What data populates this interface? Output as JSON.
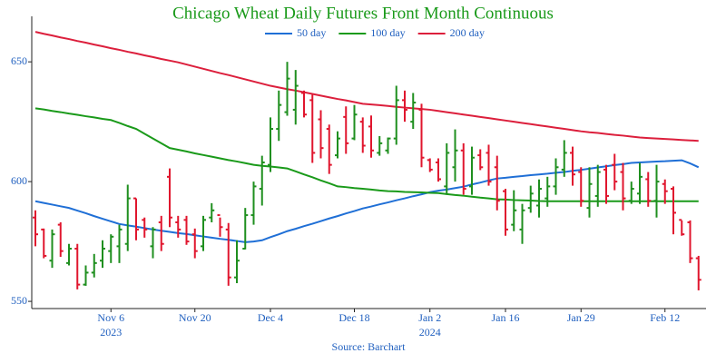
{
  "chart_data": {
    "type": "ohlc",
    "title": "Chicago Wheat Daily Futures Front Month Continuous",
    "source": "Source: Barchart",
    "categories": [
      "2023-10-24",
      "2023-10-25",
      "2023-10-26",
      "2023-10-27",
      "2023-10-30",
      "2023-10-31",
      "2023-11-01",
      "2023-11-02",
      "2023-11-03",
      "2023-11-06",
      "2023-11-07",
      "2023-11-08",
      "2023-11-09",
      "2023-11-10",
      "2023-11-13",
      "2023-11-14",
      "2023-11-15",
      "2023-11-16",
      "2023-11-17",
      "2023-11-20",
      "2023-11-21",
      "2023-11-22",
      "2023-11-24",
      "2023-11-27",
      "2023-11-28",
      "2023-11-29",
      "2023-11-30",
      "2023-12-01",
      "2023-12-04",
      "2023-12-05",
      "2023-12-06",
      "2023-12-07",
      "2023-12-08",
      "2023-12-11",
      "2023-12-12",
      "2023-12-13",
      "2023-12-14",
      "2023-12-15",
      "2023-12-18",
      "2023-12-19",
      "2023-12-20",
      "2023-12-21",
      "2023-12-22",
      "2023-12-26",
      "2023-12-27",
      "2023-12-28",
      "2023-12-29",
      "2024-01-02",
      "2024-01-03",
      "2024-01-04",
      "2024-01-05",
      "2024-01-08",
      "2024-01-09",
      "2024-01-10",
      "2024-01-11",
      "2024-01-12",
      "2024-01-16",
      "2024-01-17",
      "2024-01-18",
      "2024-01-19",
      "2024-01-22",
      "2024-01-23",
      "2024-01-24",
      "2024-01-25",
      "2024-01-26",
      "2024-01-29",
      "2024-01-30",
      "2024-01-31",
      "2024-02-01",
      "2024-02-02",
      "2024-02-05",
      "2024-02-06",
      "2024-02-07",
      "2024-02-08",
      "2024-02-09",
      "2024-02-12",
      "2024-02-13",
      "2024-02-14",
      "2024-02-15",
      "2024-02-16"
    ],
    "open": [
      585,
      580,
      567,
      582,
      566,
      572,
      557,
      562,
      567,
      571,
      573,
      574,
      593,
      584,
      573,
      583,
      602,
      583,
      584,
      578,
      573,
      585,
      586,
      580,
      560,
      572,
      586,
      597,
      607,
      622,
      629,
      630,
      637,
      634,
      626,
      622,
      611,
      627,
      618,
      625,
      623,
      612,
      613,
      618,
      634,
      625,
      630,
      609,
      608,
      598,
      606,
      613,
      598,
      611,
      612,
      606,
      596,
      582,
      580,
      589,
      590,
      593,
      598,
      605,
      612,
      604,
      589,
      594,
      605,
      607,
      604,
      592,
      595,
      601,
      592,
      599,
      597,
      584,
      583,
      568
    ],
    "high": [
      588,
      580.4,
      580,
      583,
      574,
      574,
      565,
      569.8,
      575.5,
      578,
      582,
      598.7,
      593,
      585,
      581,
      585.7,
      605.5,
      585.7,
      585.7,
      580.4,
      585.7,
      591,
      585,
      582.7,
      575.5,
      589,
      600,
      610.8,
      626.8,
      638,
      650,
      646.6,
      638,
      636.3,
      629.8,
      623.8,
      621,
      631.4,
      632,
      626.8,
      627.6,
      619,
      618.4,
      640,
      638,
      637,
      632.5,
      609.7,
      609.7,
      616,
      621.8,
      616,
      614.6,
      613.5,
      615.4,
      610.8,
      597,
      596.4,
      590.7,
      598.3,
      600.9,
      602,
      609.7,
      617.3,
      614.6,
      606,
      606,
      607,
      607,
      611.6,
      607.8,
      600,
      607.8,
      604,
      607,
      600.9,
      598,
      583.8,
      583.8,
      569
    ],
    "low": [
      573,
      568,
      564,
      568.6,
      565,
      555,
      556.5,
      560,
      564,
      566,
      566,
      571,
      575.5,
      576.6,
      568,
      571,
      581,
      576.6,
      573.6,
      568,
      571,
      583,
      577,
      556.5,
      557.6,
      571.7,
      582,
      590,
      604,
      617,
      627.5,
      623.8,
      626.8,
      607.8,
      609.7,
      603.2,
      609.7,
      611.6,
      617.3,
      612,
      610,
      610.8,
      611.6,
      615.4,
      625,
      622,
      606,
      604,
      600,
      594.5,
      600,
      594.5,
      594.5,
      604.8,
      598.3,
      588,
      577.4,
      579.3,
      574,
      587,
      585,
      589.5,
      594.5,
      602,
      598.3,
      589.5,
      585,
      589.5,
      590.7,
      596.4,
      588,
      590.7,
      590.7,
      589.5,
      585,
      590.7,
      578,
      577.4,
      566,
      554.6
    ],
    "close": [
      578,
      569,
      578,
      571,
      572,
      557,
      562,
      566,
      572,
      577,
      580,
      593,
      580,
      580,
      580,
      574,
      585,
      580,
      575,
      571,
      584,
      588,
      581,
      560,
      567,
      586,
      598,
      608,
      622,
      632,
      643,
      640,
      628,
      612,
      614,
      607,
      618,
      616,
      628,
      615,
      613,
      616,
      618,
      634,
      630,
      633,
      610,
      605,
      601,
      612,
      613,
      597,
      610,
      606,
      600,
      592,
      580,
      588,
      588,
      595,
      597,
      598,
      606,
      612,
      603,
      592,
      599,
      604,
      594,
      600,
      593,
      597,
      602,
      592,
      600,
      596,
      587,
      578,
      568,
      559
    ],
    "up_color": "#1f8f1f",
    "down_color": "#e0162e",
    "series": [
      {
        "name": "50 day",
        "color": "#1f6fd6",
        "values": [
          591.8,
          591.1,
          590.4,
          589.7,
          589.0,
          587.9,
          586.8,
          585.6,
          584.5,
          583.4,
          582.3,
          581.7,
          581.2,
          580.6,
          580.0,
          579.5,
          579.0,
          578.5,
          578.1,
          577.6,
          577.1,
          576.6,
          576.1,
          575.7,
          575.2,
          574.7,
          575.0,
          575.5,
          576.8,
          578.0,
          579.3,
          580.3,
          581.4,
          582.4,
          583.5,
          584.6,
          585.6,
          586.7,
          587.7,
          588.8,
          589.6,
          590.5,
          591.3,
          592.2,
          593.0,
          593.9,
          594.7,
          595.6,
          596.2,
          596.7,
          597.3,
          597.9,
          598.8,
          599.6,
          600.5,
          601.3,
          601.6,
          602.0,
          602.3,
          602.7,
          603.0,
          603.3,
          603.7,
          604.0,
          604.5,
          604.9,
          605.4,
          605.9,
          606.4,
          606.9,
          607.3,
          607.8,
          608.0,
          608.2,
          608.4,
          608.5,
          608.7,
          608.9,
          607.6,
          606.0
        ]
      },
      {
        "name": "100 day",
        "color": "#1a9a1a",
        "values": [
          630.6,
          630.1,
          629.5,
          629.0,
          628.4,
          627.9,
          627.3,
          626.8,
          626.2,
          625.7,
          624.5,
          623.2,
          622.0,
          620.0,
          618.0,
          616.0,
          614.0,
          613.3,
          612.6,
          611.8,
          611.1,
          610.4,
          609.7,
          609.0,
          608.4,
          607.7,
          607.0,
          606.6,
          606.3,
          605.9,
          605.5,
          604.3,
          603.0,
          601.8,
          600.5,
          599.3,
          598.0,
          597.7,
          597.3,
          597.0,
          596.7,
          596.3,
          596.0,
          595.9,
          595.7,
          595.6,
          595.5,
          595.3,
          595.2,
          594.8,
          594.4,
          594.1,
          593.7,
          593.3,
          593.0,
          592.6,
          592.5,
          592.3,
          592.2,
          592.1,
          591.9,
          591.8,
          591.8,
          591.8,
          591.8,
          591.8,
          591.8,
          591.8,
          591.8,
          591.8,
          591.8,
          591.8,
          591.8,
          591.8,
          591.8,
          591.8,
          591.8,
          591.8,
          591.8,
          591.8
        ]
      },
      {
        "name": "200 day",
        "color": "#dc1f3c",
        "values": [
          662.5,
          661.7,
          661.0,
          660.2,
          659.5,
          658.7,
          658.0,
          657.2,
          656.5,
          655.7,
          655.0,
          654.2,
          653.5,
          652.7,
          652.0,
          651.2,
          650.5,
          649.8,
          648.9,
          648.0,
          647.1,
          646.2,
          645.3,
          644.5,
          643.6,
          642.7,
          641.8,
          640.9,
          640.0,
          639.3,
          638.6,
          638.0,
          637.3,
          636.6,
          635.9,
          635.2,
          634.5,
          633.9,
          633.2,
          632.5,
          632.2,
          631.9,
          631.6,
          631.2,
          630.9,
          630.6,
          630.3,
          630.0,
          629.5,
          629.0,
          628.5,
          628.0,
          627.5,
          627.0,
          626.5,
          626.0,
          625.5,
          625.0,
          624.5,
          624.0,
          623.5,
          623.0,
          622.5,
          622.0,
          621.5,
          621.0,
          620.6,
          620.3,
          619.9,
          619.5,
          619.2,
          618.8,
          618.4,
          618.2,
          618.0,
          617.8,
          617.6,
          617.4,
          617.2,
          617.0
        ]
      }
    ],
    "ylim": [
      547,
      669
    ],
    "yticks": [
      550,
      600,
      650
    ],
    "xticks": [
      {
        "value": "2023-11-06",
        "label": "Nov 6",
        "year": "2023"
      },
      {
        "value": "2023-11-20",
        "label": "Nov 20"
      },
      {
        "value": "2023-12-04",
        "label": "Dec 4"
      },
      {
        "value": "2023-12-18",
        "label": "Dec 18"
      },
      {
        "value": "2024-01-02",
        "label": "Jan 2",
        "year": "2024"
      },
      {
        "value": "2024-01-16",
        "label": "Jan 16"
      },
      {
        "value": "2024-01-29",
        "label": "Jan 29"
      },
      {
        "value": "2024-02-12",
        "label": "Feb 12"
      }
    ]
  }
}
